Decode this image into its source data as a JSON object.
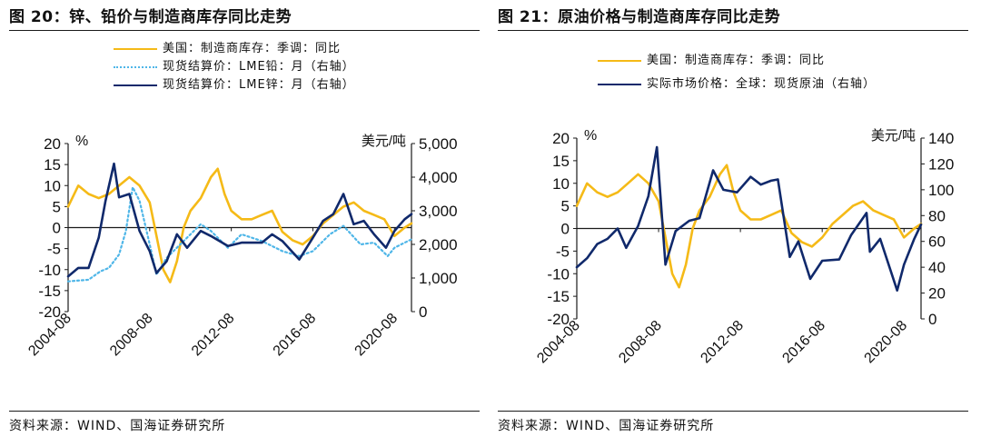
{
  "colors": {
    "yellow": "#F5BA17",
    "navy": "#10296B",
    "lightblue": "#4FB6E8",
    "axis": "#1a1a1a"
  },
  "left": {
    "title": "图 20：锌、铅价与制造商库存同比走势",
    "source": "资料来源：WIND、国海证券研究所",
    "legend": [
      {
        "label": "美国：制造商库存：季调：同比",
        "color": "#F5BA17",
        "style": "solid"
      },
      {
        "label": "现货结算价：LME铅：月（右轴）",
        "color": "#4FB6E8",
        "style": "dotted"
      },
      {
        "label": "现货结算价：LME锌：月（右轴）",
        "color": "#10296B",
        "style": "solid"
      }
    ],
    "y_left_unit": "%",
    "y_right_unit": "美元/吨",
    "y_left_ticks": [
      "20",
      "15",
      "10",
      "5",
      "0",
      "-5",
      "-10",
      "-15",
      "-20"
    ],
    "y_right_ticks": [
      "5,000",
      "4,000",
      "3,000",
      "2,000",
      "1,000",
      "0"
    ],
    "x_ticks": [
      "2004-08",
      "2008-08",
      "2012-08",
      "2016-08",
      "2020-08"
    ]
  },
  "right": {
    "title": "图 21：原油价格与制造商库存同比走势",
    "source": "资料来源：WIND、国海证券研究所",
    "legend": [
      {
        "label": "美国：制造商库存：季调：同比",
        "color": "#F5BA17",
        "style": "solid"
      },
      {
        "label": "实际市场价格：全球：现货原油（右轴）",
        "color": "#10296B",
        "style": "solid"
      }
    ],
    "y_left_unit": "%",
    "y_right_unit": "美元/吨",
    "y_left_ticks": [
      "20",
      "15",
      "10",
      "5",
      "0",
      "-5",
      "-10",
      "-15",
      "-20"
    ],
    "y_right_ticks": [
      "140",
      "120",
      "100",
      "80",
      "60",
      "40",
      "20",
      "0"
    ],
    "x_ticks": [
      "2004-08",
      "2008-08",
      "2012-08",
      "2016-08",
      "2020-08"
    ]
  },
  "chart_data": [
    {
      "type": "line",
      "title": "图 20：锌、铅价与制造商库存同比走势",
      "x_range": [
        "2004-08",
        "2021-06"
      ],
      "ylim_left": [
        -20,
        20
      ],
      "ylim_right": [
        0,
        5000
      ],
      "series": [
        {
          "name": "美国：制造商库存：季调：同比",
          "axis": "left",
          "color": "#F5BA17",
          "x": [
            "2004-08",
            "2005-02",
            "2005-08",
            "2006-02",
            "2006-08",
            "2007-02",
            "2007-08",
            "2008-02",
            "2008-08",
            "2008-12",
            "2009-04",
            "2009-08",
            "2009-12",
            "2010-04",
            "2010-08",
            "2011-02",
            "2011-08",
            "2011-12",
            "2012-04",
            "2012-08",
            "2013-02",
            "2013-08",
            "2014-02",
            "2014-08",
            "2015-02",
            "2015-08",
            "2016-02",
            "2016-08",
            "2017-02",
            "2017-08",
            "2018-02",
            "2018-08",
            "2019-02",
            "2019-08",
            "2020-02",
            "2020-08",
            "2021-02",
            "2021-06"
          ],
          "values": [
            5,
            10,
            8,
            7,
            8,
            10,
            12,
            10,
            6,
            -2,
            -10,
            -13,
            -8,
            0,
            4,
            7,
            12,
            14,
            8,
            4,
            2,
            2,
            3,
            4,
            -1,
            -3,
            -4,
            -2,
            1,
            3,
            5,
            6,
            4,
            3,
            2,
            -2,
            0,
            1
          ]
        },
        {
          "name": "现货结算价：LME铅：月（右轴）",
          "axis": "right",
          "color": "#4FB6E8",
          "x": [
            "2004-08",
            "2005-08",
            "2006-03",
            "2006-08",
            "2007-02",
            "2007-06",
            "2007-10",
            "2008-02",
            "2008-08",
            "2008-12",
            "2009-06",
            "2010-04",
            "2011-02",
            "2011-08",
            "2012-06",
            "2013-02",
            "2014-02",
            "2015-02",
            "2015-12",
            "2016-08",
            "2017-06",
            "2018-02",
            "2018-12",
            "2019-08",
            "2020-04",
            "2020-08",
            "2021-06"
          ],
          "values": [
            900,
            950,
            1200,
            1300,
            1700,
            2400,
            3700,
            3300,
            2000,
            1100,
            1600,
            2100,
            2600,
            2400,
            1900,
            2300,
            2100,
            1800,
            1650,
            1800,
            2300,
            2550,
            2000,
            2050,
            1650,
            1900,
            2150
          ]
        },
        {
          "name": "现货结算价：LME锌：月（右轴）",
          "axis": "right",
          "color": "#10296B",
          "x": [
            "2004-08",
            "2005-02",
            "2005-08",
            "2006-02",
            "2006-06",
            "2006-11",
            "2007-02",
            "2007-08",
            "2008-02",
            "2008-08",
            "2008-12",
            "2009-06",
            "2009-12",
            "2010-06",
            "2011-02",
            "2011-08",
            "2012-06",
            "2013-02",
            "2014-02",
            "2014-08",
            "2015-02",
            "2015-12",
            "2016-08",
            "2017-02",
            "2017-08",
            "2018-02",
            "2018-08",
            "2019-02",
            "2019-08",
            "2020-03",
            "2020-08",
            "2021-02",
            "2021-06"
          ],
          "values": [
            1050,
            1300,
            1300,
            2200,
            3300,
            4400,
            3400,
            3500,
            2400,
            1800,
            1150,
            1500,
            2300,
            1900,
            2400,
            2250,
            1950,
            2050,
            2050,
            2300,
            2100,
            1550,
            2200,
            2700,
            2900,
            3500,
            2600,
            2700,
            2300,
            1900,
            2400,
            2750,
            2900
          ]
        }
      ]
    },
    {
      "type": "line",
      "title": "图 21：原油价格与制造商库存同比走势",
      "x_range": [
        "2004-08",
        "2021-06"
      ],
      "ylim_left": [
        -20,
        20
      ],
      "ylim_right": [
        0,
        140
      ],
      "series": [
        {
          "name": "美国：制造商库存：季调：同比",
          "axis": "left",
          "color": "#F5BA17",
          "x": [
            "2004-08",
            "2005-02",
            "2005-08",
            "2006-02",
            "2006-08",
            "2007-02",
            "2007-08",
            "2008-02",
            "2008-08",
            "2008-12",
            "2009-04",
            "2009-08",
            "2009-12",
            "2010-04",
            "2010-08",
            "2011-02",
            "2011-08",
            "2011-12",
            "2012-04",
            "2012-08",
            "2013-02",
            "2013-08",
            "2014-02",
            "2014-08",
            "2015-02",
            "2015-08",
            "2016-02",
            "2016-08",
            "2017-02",
            "2017-08",
            "2018-02",
            "2018-08",
            "2019-02",
            "2019-08",
            "2020-02",
            "2020-08",
            "2021-02",
            "2021-06"
          ],
          "values": [
            5,
            10,
            8,
            7,
            8,
            10,
            12,
            10,
            6,
            -2,
            -10,
            -13,
            -8,
            0,
            4,
            7,
            12,
            14,
            8,
            4,
            2,
            2,
            3,
            4,
            -1,
            -3,
            -4,
            -2,
            1,
            3,
            5,
            6,
            4,
            3,
            2,
            -2,
            0,
            1
          ]
        },
        {
          "name": "实际市场价格：全球：现货原油（右轴）",
          "axis": "right",
          "color": "#10296B",
          "x": [
            "2004-08",
            "2005-02",
            "2005-08",
            "2006-02",
            "2006-08",
            "2007-01",
            "2007-08",
            "2008-02",
            "2008-07",
            "2008-12",
            "2009-06",
            "2010-02",
            "2010-08",
            "2011-04",
            "2011-10",
            "2012-06",
            "2013-02",
            "2013-08",
            "2014-02",
            "2014-06",
            "2015-01",
            "2015-06",
            "2016-01",
            "2016-08",
            "2017-06",
            "2018-01",
            "2018-10",
            "2018-12",
            "2019-06",
            "2020-04",
            "2020-08",
            "2021-02",
            "2021-06"
          ],
          "values": [
            40,
            47,
            58,
            62,
            70,
            55,
            72,
            95,
            133,
            42,
            68,
            76,
            78,
            115,
            100,
            98,
            110,
            104,
            107,
            108,
            48,
            60,
            31,
            45,
            46,
            65,
            82,
            52,
            62,
            22,
            42,
            62,
            73
          ]
        }
      ]
    }
  ]
}
